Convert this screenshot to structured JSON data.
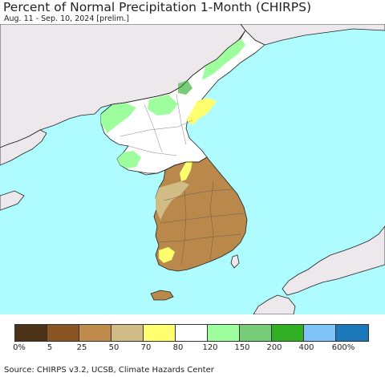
{
  "title": "Percent of Normal Precipitation 1-Month (CHIRPS)",
  "subtitle": "Aug. 11 - Sep. 10, 2024 [prelim.]",
  "source": "Source: CHIRPS v3.2, UCSB, Climate Hazards Center",
  "colors": {
    "sea": "#aefcff",
    "land_outside": "#ece8ec",
    "coast": "#222222",
    "south_korea_main": "#b9884a",
    "north_korea_main": "#ffffff"
  },
  "legend": {
    "colors": [
      "#4b3216",
      "#8a5522",
      "#bf8a4a",
      "#d1bc86",
      "#fefe6f",
      "#ffffff",
      "#9efe9e",
      "#77cc77",
      "#32b024",
      "#7fc4f8",
      "#1a78bb"
    ],
    "labels": [
      "0%",
      "5",
      "25",
      "50",
      "70",
      "80",
      "120",
      "150",
      "200",
      "400",
      "600%"
    ]
  }
}
